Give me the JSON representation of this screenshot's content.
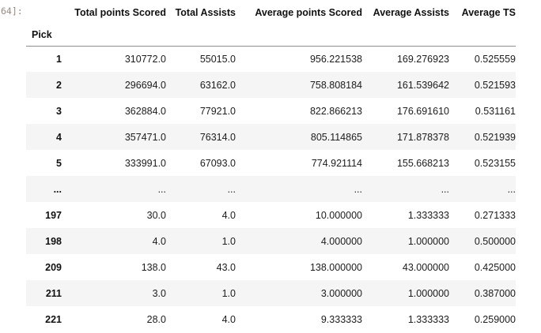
{
  "output_prompt": "64]:",
  "table": {
    "index_name": "Pick",
    "columns": [
      "Total points Scored",
      "Total Assists",
      "Average points Scored",
      "Average Assists",
      "Average TS"
    ],
    "rows": [
      {
        "index": "1",
        "cells": [
          "310772.0",
          "55015.0",
          "956.221538",
          "169.276923",
          "0.525559"
        ]
      },
      {
        "index": "2",
        "cells": [
          "296694.0",
          "63162.0",
          "758.808184",
          "161.539642",
          "0.521593"
        ]
      },
      {
        "index": "3",
        "cells": [
          "362884.0",
          "77921.0",
          "822.866213",
          "176.691610",
          "0.531161"
        ]
      },
      {
        "index": "4",
        "cells": [
          "357471.0",
          "76314.0",
          "805.114865",
          "171.878378",
          "0.521939"
        ]
      },
      {
        "index": "5",
        "cells": [
          "333991.0",
          "67093.0",
          "774.921114",
          "155.668213",
          "0.523155"
        ]
      },
      {
        "index": "...",
        "cells": [
          "...",
          "...",
          "...",
          "...",
          "..."
        ]
      },
      {
        "index": "197",
        "cells": [
          "30.0",
          "4.0",
          "10.000000",
          "1.333333",
          "0.271333"
        ]
      },
      {
        "index": "198",
        "cells": [
          "4.0",
          "1.0",
          "4.000000",
          "1.000000",
          "0.500000"
        ]
      },
      {
        "index": "209",
        "cells": [
          "138.0",
          "43.0",
          "138.000000",
          "43.000000",
          "0.425000"
        ]
      },
      {
        "index": "211",
        "cells": [
          "3.0",
          "1.0",
          "3.000000",
          "1.000000",
          "0.387000"
        ]
      },
      {
        "index": "221",
        "cells": [
          "28.0",
          "4.0",
          "9.333333",
          "1.333333",
          "0.259000"
        ]
      }
    ]
  },
  "chart_data": {
    "type": "table",
    "title": "",
    "index_label": "Pick",
    "columns": [
      "Total points Scored",
      "Total Assists",
      "Average points Scored",
      "Average Assists",
      "Average TS"
    ],
    "index": [
      "1",
      "2",
      "3",
      "4",
      "5",
      "...",
      "197",
      "198",
      "209",
      "211",
      "221"
    ],
    "values": [
      [
        310772.0,
        55015.0,
        956.221538,
        169.276923,
        0.525559
      ],
      [
        296694.0,
        63162.0,
        758.808184,
        161.539642,
        0.521593
      ],
      [
        362884.0,
        77921.0,
        822.866213,
        176.69161,
        0.531161
      ],
      [
        357471.0,
        76314.0,
        805.114865,
        171.878378,
        0.521939
      ],
      [
        333991.0,
        67093.0,
        774.921114,
        155.668213,
        0.523155
      ],
      null,
      [
        30.0,
        4.0,
        10.0,
        1.333333,
        0.271333
      ],
      [
        4.0,
        1.0,
        4.0,
        1.0,
        0.5
      ],
      [
        138.0,
        43.0,
        138.0,
        43.0,
        0.425
      ],
      [
        3.0,
        1.0,
        3.0,
        1.0,
        0.387
      ],
      [
        28.0,
        4.0,
        9.333333,
        1.333333,
        0.259
      ]
    ]
  },
  "colors": {
    "background": "#ffffff",
    "stripe": "#f5f5f5",
    "text": "#1c1c1c",
    "header_text": "#111111",
    "header_border": "#8f8f8f",
    "prompt_text": "#958a84"
  }
}
